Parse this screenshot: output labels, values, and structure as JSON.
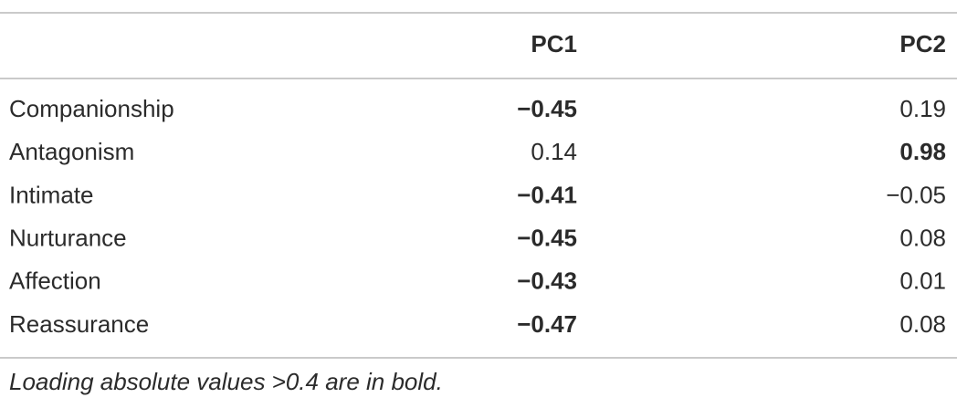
{
  "table": {
    "columns": [
      "PC1",
      "PC2"
    ],
    "rows": [
      {
        "label": "Companionship",
        "cells": [
          {
            "text": "−0.45",
            "bold": true
          },
          {
            "text": "0.19",
            "bold": false
          }
        ]
      },
      {
        "label": "Antagonism",
        "cells": [
          {
            "text": "0.14",
            "bold": false
          },
          {
            "text": "0.98",
            "bold": true
          }
        ]
      },
      {
        "label": "Intimate",
        "cells": [
          {
            "text": "−0.41",
            "bold": true
          },
          {
            "text": "−0.05",
            "bold": false
          }
        ]
      },
      {
        "label": "Nurturance",
        "cells": [
          {
            "text": "−0.45",
            "bold": true
          },
          {
            "text": "0.08",
            "bold": false
          }
        ]
      },
      {
        "label": "Affection",
        "cells": [
          {
            "text": "−0.43",
            "bold": true
          },
          {
            "text": "0.01",
            "bold": false
          }
        ]
      },
      {
        "label": "Reassurance",
        "cells": [
          {
            "text": "−0.47",
            "bold": true
          },
          {
            "text": "0.08",
            "bold": false
          }
        ]
      }
    ],
    "footnote": "Loading absolute values >0.4 are in bold."
  }
}
